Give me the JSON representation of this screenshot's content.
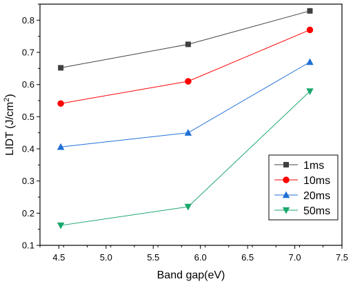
{
  "chart_data": {
    "type": "line",
    "xlabel": "Band gap(eV)",
    "ylabel_main": "LIDT (J/cm",
    "ylabel_sup": "2",
    "ylabel_close": ")",
    "xlim": [
      4.3,
      7.5
    ],
    "ylim": [
      0.1,
      0.85
    ],
    "x_ticks": [
      "4.5",
      "5.0",
      "5.5",
      "6.0",
      "6.5",
      "7.0",
      "7.5"
    ],
    "y_ticks": [
      "0.1",
      "0.2",
      "0.3",
      "0.4",
      "0.5",
      "0.6",
      "0.7",
      "0.8"
    ],
    "legend_position": "bottom-right",
    "series": [
      {
        "name": "1ms",
        "color": "#404040",
        "marker": "square",
        "x": [
          4.52,
          5.87,
          7.16
        ],
        "values": [
          0.652,
          0.725,
          0.829
        ]
      },
      {
        "name": "10ms",
        "color": "#ff0000",
        "marker": "circle",
        "x": [
          4.52,
          5.87,
          7.16
        ],
        "values": [
          0.541,
          0.61,
          0.77
        ]
      },
      {
        "name": "20ms",
        "color": "#1f6fd6",
        "marker": "triangle-up",
        "x": [
          4.52,
          5.87,
          7.16
        ],
        "values": [
          0.406,
          0.45,
          0.67
        ]
      },
      {
        "name": "50ms",
        "color": "#1aa76c",
        "marker": "triangle-down",
        "x": [
          4.52,
          5.87,
          7.16
        ],
        "values": [
          0.162,
          0.22,
          0.579
        ]
      }
    ]
  }
}
